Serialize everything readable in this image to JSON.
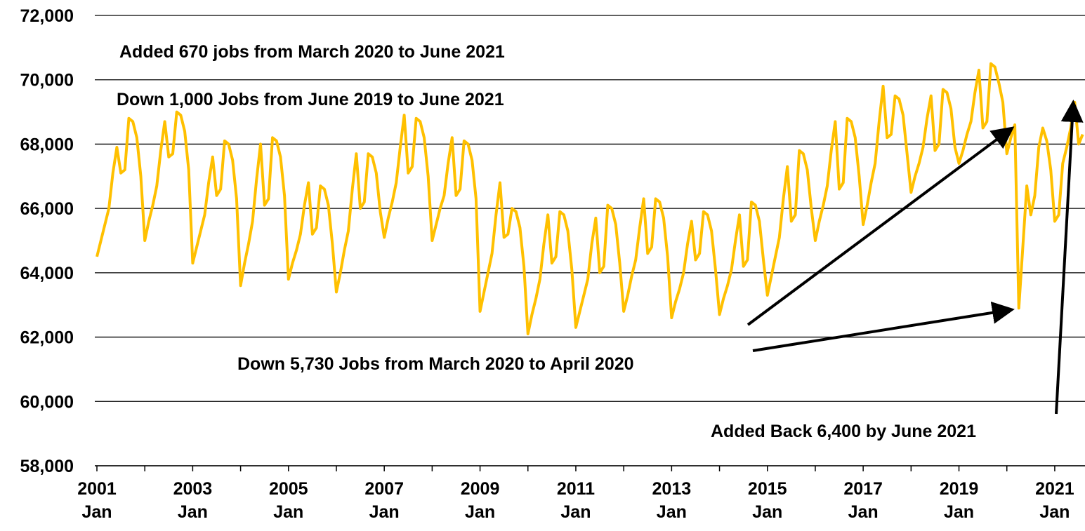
{
  "chart_data": {
    "type": "line",
    "categories": [
      "2001 Jan",
      null,
      null,
      null,
      null,
      null,
      null,
      null,
      null,
      null,
      null,
      null,
      null,
      null,
      null,
      null,
      null,
      null,
      null,
      null,
      null,
      null,
      null,
      null,
      "2003 Jan",
      null,
      null,
      null,
      null,
      null,
      null,
      null,
      null,
      null,
      null,
      null,
      null,
      null,
      null,
      null,
      null,
      null,
      null,
      null,
      null,
      null,
      null,
      null,
      "2005 Jan",
      null,
      null,
      null,
      null,
      null,
      null,
      null,
      null,
      null,
      null,
      null,
      null,
      null,
      null,
      null,
      null,
      null,
      null,
      null,
      null,
      null,
      null,
      null,
      "2007 Jan",
      null,
      null,
      null,
      null,
      null,
      null,
      null,
      null,
      null,
      null,
      null,
      null,
      null,
      null,
      null,
      null,
      null,
      null,
      null,
      null,
      null,
      null,
      null,
      "2009 Jan",
      null,
      null,
      null,
      null,
      null,
      null,
      null,
      null,
      null,
      null,
      null,
      null,
      null,
      null,
      null,
      null,
      null,
      null,
      null,
      null,
      null,
      null,
      null,
      "2011 Jan",
      null,
      null,
      null,
      null,
      null,
      null,
      null,
      null,
      null,
      null,
      null,
      null,
      null,
      null,
      null,
      null,
      null,
      null,
      null,
      null,
      null,
      null,
      null,
      "2013 Jan",
      null,
      null,
      null,
      null,
      null,
      null,
      null,
      null,
      null,
      null,
      null,
      null,
      null,
      null,
      null,
      null,
      null,
      null,
      null,
      null,
      null,
      null,
      null,
      "2015 Jan",
      null,
      null,
      null,
      null,
      null,
      null,
      null,
      null,
      null,
      null,
      null,
      null,
      null,
      null,
      null,
      null,
      null,
      null,
      null,
      null,
      null,
      null,
      null,
      "2017 Jan",
      null,
      null,
      null,
      null,
      null,
      null,
      null,
      null,
      null,
      null,
      null,
      null,
      null,
      null,
      null,
      null,
      null,
      null,
      null,
      null,
      null,
      null,
      null,
      "2019 Jan",
      null,
      null,
      null,
      null,
      null,
      null,
      null,
      null,
      null,
      null,
      null,
      null,
      null,
      null,
      null,
      null,
      null,
      null,
      null,
      null,
      null,
      null,
      null,
      "2021 Jan",
      null,
      null,
      null,
      null,
      null,
      null,
      null
    ],
    "series": [
      {
        "color": "#ffc000",
        "values": [
          64500,
          65000,
          65500,
          66000,
          67100,
          67900,
          67100,
          67200,
          68800,
          68700,
          68200,
          67000,
          65000,
          65600,
          66100,
          66700,
          67800,
          68700,
          67600,
          67700,
          69000,
          68900,
          68400,
          67200,
          64300,
          64800,
          65300,
          65800,
          66800,
          67600,
          66400,
          66600,
          68100,
          68000,
          67500,
          66300,
          63600,
          64300,
          64900,
          65600,
          66900,
          68000,
          66100,
          66300,
          68200,
          68100,
          67600,
          66400,
          63800,
          64300,
          64700,
          65200,
          66100,
          66800,
          65200,
          65400,
          66700,
          66600,
          66100,
          64900,
          63400,
          64000,
          64700,
          65300,
          66600,
          67700,
          66000,
          66200,
          67700,
          67600,
          67100,
          65900,
          65100,
          65700,
          66200,
          66800,
          67900,
          68900,
          67100,
          67300,
          68800,
          68700,
          68200,
          67000,
          65000,
          65500,
          66000,
          66400,
          67400,
          68200,
          66400,
          66600,
          68100,
          68000,
          67500,
          66300,
          62800,
          63400,
          64000,
          64600,
          65800,
          66800,
          65100,
          65200,
          66000,
          65900,
          65400,
          64200,
          62100,
          62700,
          63200,
          63800,
          64900,
          65800,
          64300,
          64500,
          65900,
          65800,
          65300,
          64100,
          62300,
          62800,
          63300,
          63800,
          64900,
          65700,
          64000,
          64200,
          66100,
          66000,
          65500,
          64300,
          62800,
          63300,
          63900,
          64400,
          65400,
          66300,
          64600,
          64800,
          66300,
          66200,
          65700,
          64500,
          62600,
          63100,
          63500,
          64000,
          64900,
          65600,
          64400,
          64600,
          65900,
          65800,
          65300,
          64100,
          62700,
          63200,
          63600,
          64100,
          65000,
          65800,
          64200,
          64400,
          66200,
          66100,
          65600,
          64400,
          63300,
          63900,
          64500,
          65100,
          66300,
          67300,
          65600,
          65800,
          67800,
          67700,
          67200,
          66000,
          65000,
          65600,
          66100,
          66700,
          67800,
          68700,
          66600,
          66800,
          68800,
          68700,
          68200,
          67000,
          65500,
          66100,
          66800,
          67400,
          68700,
          69800,
          68200,
          68300,
          69500,
          69400,
          68900,
          67700,
          66500,
          67000,
          67400,
          67900,
          68800,
          69500,
          67800,
          68000,
          69700,
          69600,
          69100,
          67900,
          67400,
          67800,
          68300,
          68700,
          69600,
          70300,
          68500,
          68700,
          70500,
          70400,
          69900,
          69300,
          67700,
          68200,
          68600,
          62900,
          64800,
          66700,
          65800,
          66400,
          67900,
          68500,
          68100,
          67200,
          65600,
          65800,
          67400,
          67900,
          68500,
          69300,
          68000,
          68300
        ]
      }
    ],
    "ylim": [
      58000,
      72000
    ],
    "yticks": [
      {
        "value": 58000,
        "label": "58,000"
      },
      {
        "value": 60000,
        "label": "60,000"
      },
      {
        "value": 62000,
        "label": "62,000"
      },
      {
        "value": 64000,
        "label": "64,000"
      },
      {
        "value": 66000,
        "label": "66,000"
      },
      {
        "value": 68000,
        "label": "68,000"
      },
      {
        "value": 70000,
        "label": "70,000"
      },
      {
        "value": 72000,
        "label": "72,000"
      }
    ],
    "grid": true,
    "annotations": [
      "Added 670 jobs from March 2020 to June 2021",
      "Down 1,000 Jobs from June 2019 to June 2021",
      "Down 5,730 Jobs from March 2020 to April 2020",
      "Added Back 6,400 by June 2021"
    ]
  }
}
